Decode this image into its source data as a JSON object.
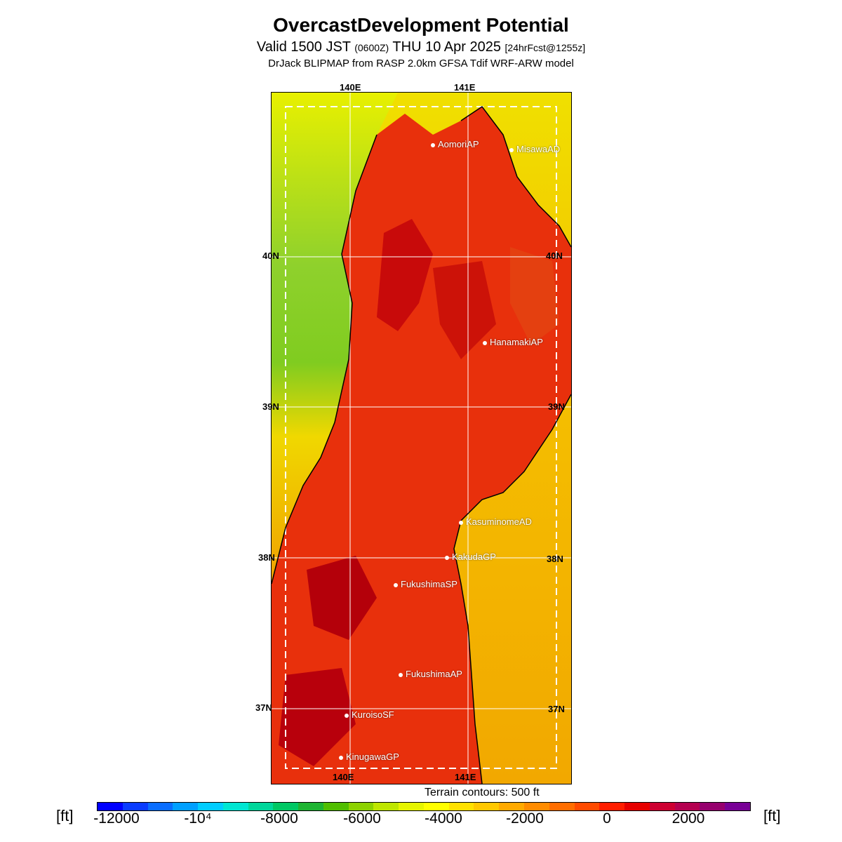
{
  "title": "OvercastDevelopment Potential",
  "subtitle_main": "Valid 1500 JST ",
  "subtitle_small1": "(0600Z)",
  "subtitle_rest": " THU 10 Apr 2025 ",
  "subtitle_small2": "[24hrFcst@1255z]",
  "model_line": "DrJack BLIPMAP from RASP 2.0km GFSA Tdif WRF-ARW model",
  "lon_labels": {
    "top_140": "140E",
    "top_141": "141E",
    "bottom_140": "140E",
    "bottom_141": "141E"
  },
  "lat_labels": {
    "l40": "40N",
    "l39": "39N",
    "l38": "38N",
    "l37": "37N",
    "r40": "40N",
    "r39": "39N",
    "r38": "38N",
    "r37": "37N"
  },
  "stations": [
    {
      "name": "AomoriAP"
    },
    {
      "name": "MisawaAD"
    },
    {
      "name": "HanamakiAP"
    },
    {
      "name": "KasuminomeAD"
    },
    {
      "name": "KakudaGP"
    },
    {
      "name": "FukushimaSP"
    },
    {
      "name": "FukushimaAP"
    },
    {
      "name": "KuroisoSF"
    },
    {
      "name": "KinugawaGP"
    }
  ],
  "contour_note": "Terrain contours: 500 ft",
  "colorbar": {
    "unit": "[ft]",
    "ticks": [
      "-12000",
      "-10⁴",
      "-8000",
      "-6000",
      "-4000",
      "-2000",
      "0",
      "2000"
    ],
    "colors": [
      "#0000ff",
      "#0a3cff",
      "#0a6eff",
      "#00a0ff",
      "#00cdff",
      "#00e6d2",
      "#00d79b",
      "#00c864",
      "#1eb432",
      "#50be00",
      "#8cd200",
      "#bee600",
      "#e6f500",
      "#ffff00",
      "#ffe100",
      "#ffc800",
      "#ffaa00",
      "#ff8c00",
      "#ff6e00",
      "#ff4b00",
      "#ff1e00",
      "#e60000",
      "#cd0032",
      "#b40050",
      "#96006e",
      "#780096"
    ]
  },
  "colors": {
    "ocean_east": "#f0b000",
    "ocean_west": "#8fd12c",
    "land": "#e8300c"
  }
}
